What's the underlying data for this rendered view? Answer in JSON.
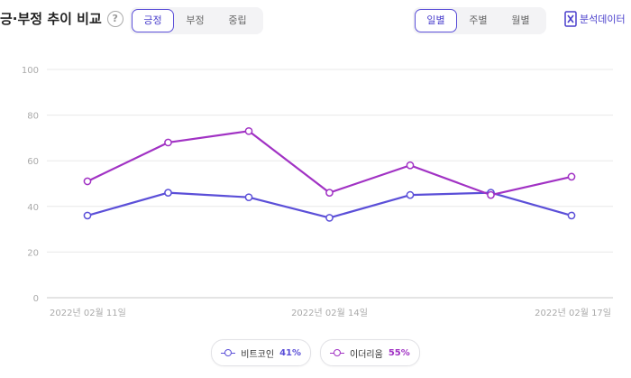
{
  "header": {
    "title": "긍·부정 추이 비교",
    "help_icon": "question-circle-icon"
  },
  "sentiment_tabs": [
    {
      "label": "긍정",
      "active": true
    },
    {
      "label": "부정",
      "active": false
    },
    {
      "label": "중립",
      "active": false
    }
  ],
  "period_tabs": [
    {
      "label": "일별",
      "active": true
    },
    {
      "label": "주별",
      "active": false
    },
    {
      "label": "월별",
      "active": false
    }
  ],
  "export": {
    "label": "분석데이터",
    "icon": "excel-icon"
  },
  "colors": {
    "accent": "#5b4fd8",
    "series1": "#5b4fd8",
    "series2": "#a132c4"
  },
  "chart_data": {
    "type": "line",
    "x": [
      "2022-02-11",
      "2022-02-12",
      "2022-02-13",
      "2022-02-14",
      "2022-02-15",
      "2022-02-16",
      "2022-02-17"
    ],
    "x_tick_labels": [
      "2022년 02월 11일",
      "2022년 02월 14일",
      "2022년 02월 17일"
    ],
    "y_ticks": [
      "0",
      "20",
      "40",
      "60",
      "80",
      "100"
    ],
    "ylim": [
      0,
      100
    ],
    "grid": true,
    "series": [
      {
        "name": "비트코인",
        "values": [
          36,
          46,
          44,
          35,
          45,
          46,
          36
        ],
        "color": "#5b4fd8",
        "legend_pct": "41%"
      },
      {
        "name": "이더리움",
        "values": [
          51,
          68,
          73,
          46,
          58,
          45,
          53
        ],
        "color": "#a132c4",
        "legend_pct": "55%"
      }
    ],
    "legend_position": "bottom-center"
  }
}
